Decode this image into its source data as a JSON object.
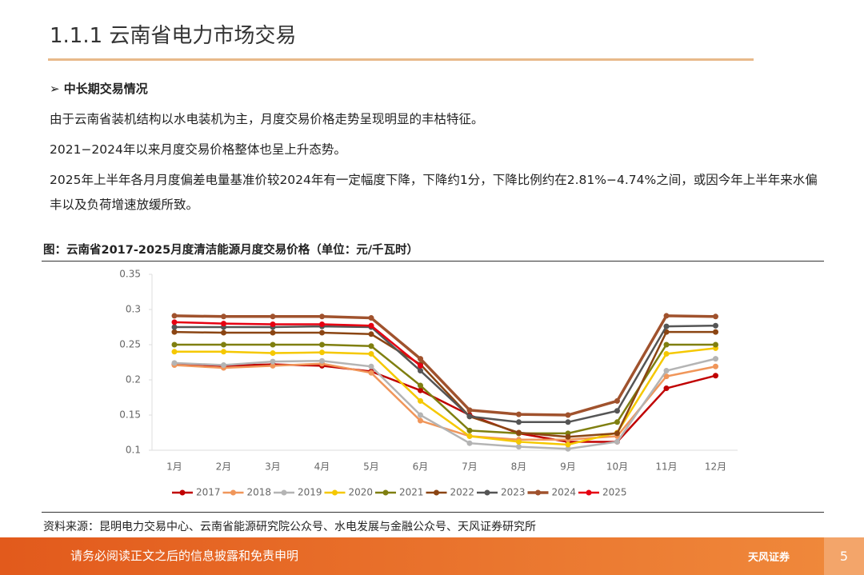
{
  "title": "1.1.1 云南省电力市场交易",
  "bullet": "中长期交易情况",
  "paragraphs": [
    "由于云南省装机结构以水电装机为主，月度交易价格走势呈现明显的丰枯特征。",
    "2021−2024年以来月度交易价格整体也呈上升态势。",
    "2025年上半年各月月度偏差电量基准价较2024年有一定幅度下降，下降约1分，下降比例约在2.81%−4.74%之间，或因今年上半年来水偏丰以及负荷增速放缓所致。"
  ],
  "chart_caption": "图：云南省2017-2025月度清洁能源月度交易价格（单位：元/千瓦时）",
  "source": "资料来源：昆明电力交易中心、云南省能源研究院公众号、水电发展与金融公众号、天风证券研究所",
  "footer": "请务必阅读正文之后的信息披露和免责申明",
  "logo": "天风证券",
  "page_number": "5",
  "chart_data": {
    "type": "line",
    "categories": [
      "1月",
      "2月",
      "3月",
      "4月",
      "5月",
      "6月",
      "7月",
      "8月",
      "9月",
      "10月",
      "11月",
      "12月"
    ],
    "ylim": [
      0.1,
      0.35
    ],
    "yticks": [
      0.1,
      0.15,
      0.2,
      0.25,
      0.3,
      0.35
    ],
    "grid": false,
    "legend": "bottom",
    "series": [
      {
        "name": "2017",
        "color": "#c00000",
        "values": [
          0.222,
          0.22,
          0.222,
          0.22,
          0.212,
          0.185,
          0.15,
          0.124,
          0.112,
          0.112,
          0.188,
          0.206
        ]
      },
      {
        "name": "2018",
        "color": "#f0965a",
        "values": [
          0.221,
          0.217,
          0.22,
          0.223,
          0.21,
          0.142,
          0.12,
          0.115,
          0.115,
          0.12,
          0.205,
          0.219
        ]
      },
      {
        "name": "2019",
        "color": "#b4b4b4",
        "values": [
          0.224,
          0.221,
          0.226,
          0.227,
          0.219,
          0.15,
          0.11,
          0.105,
          0.102,
          0.112,
          0.213,
          0.23
        ]
      },
      {
        "name": "2020",
        "color": "#f5c800",
        "values": [
          0.24,
          0.24,
          0.238,
          0.239,
          0.237,
          0.17,
          0.12,
          0.112,
          0.108,
          0.125,
          0.237,
          0.245
        ]
      },
      {
        "name": "2021",
        "color": "#7f7f10",
        "values": [
          0.25,
          0.25,
          0.25,
          0.25,
          0.248,
          0.192,
          0.128,
          0.124,
          0.124,
          0.14,
          0.25,
          0.25
        ]
      },
      {
        "name": "2022",
        "color": "#8b4513",
        "values": [
          0.268,
          0.267,
          0.267,
          0.267,
          0.265,
          0.222,
          0.148,
          0.125,
          0.119,
          0.124,
          0.268,
          0.268
        ]
      },
      {
        "name": "2023",
        "color": "#555555",
        "values": [
          0.275,
          0.275,
          0.275,
          0.276,
          0.275,
          0.213,
          0.148,
          0.14,
          0.14,
          0.156,
          0.276,
          0.277
        ]
      },
      {
        "name": "2024",
        "color": "#a0522d",
        "values": [
          0.291,
          0.29,
          0.29,
          0.29,
          0.288,
          0.23,
          0.157,
          0.151,
          0.15,
          0.17,
          0.291,
          0.29
        ]
      },
      {
        "name": "2025",
        "color": "#e60012",
        "values": [
          0.282,
          0.28,
          0.279,
          0.279,
          0.277,
          0.22,
          null,
          null,
          null,
          null,
          null,
          null
        ]
      }
    ]
  }
}
